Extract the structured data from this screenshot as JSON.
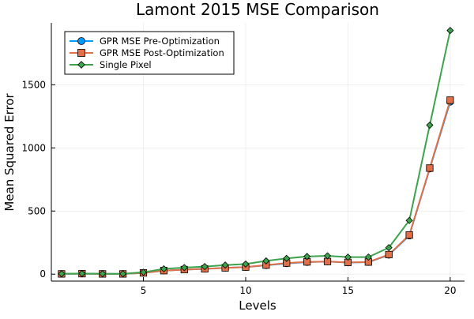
{
  "chart_data": {
    "type": "line",
    "title": "Lamont 2015 MSE Comparison",
    "xlabel": "Levels",
    "ylabel": "Mean Squared Error",
    "xlim": [
      0.5,
      20.7
    ],
    "ylim": [
      -55,
      1990
    ],
    "xticks": [
      5,
      10,
      15,
      20
    ],
    "yticks": [
      0,
      500,
      1000,
      1500
    ],
    "grid": true,
    "legend_position": "top-left",
    "x": [
      1,
      2,
      3,
      4,
      5,
      6,
      7,
      8,
      9,
      10,
      11,
      12,
      13,
      14,
      15,
      16,
      17,
      18,
      19,
      20
    ],
    "series": [
      {
        "name": "GPR MSE Pre-Optimization",
        "color": "#009AFA",
        "marker": "circle",
        "values": [
          2,
          4,
          2,
          2,
          10,
          28,
          36,
          42,
          50,
          56,
          70,
          85,
          95,
          100,
          92,
          95,
          152,
          305,
          835,
          1365
        ]
      },
      {
        "name": "GPR MSE Post-Optimization",
        "color": "#E26F46",
        "marker": "square",
        "values": [
          2,
          4,
          2,
          2,
          10,
          28,
          36,
          42,
          50,
          56,
          72,
          88,
          97,
          100,
          93,
          96,
          155,
          310,
          840,
          1378
        ]
      },
      {
        "name": "Single Pixel",
        "color": "#3DA44D",
        "marker": "diamond",
        "values": [
          3,
          5,
          3,
          3,
          15,
          42,
          52,
          60,
          72,
          80,
          105,
          125,
          140,
          145,
          135,
          135,
          210,
          425,
          1180,
          1930
        ]
      }
    ]
  }
}
